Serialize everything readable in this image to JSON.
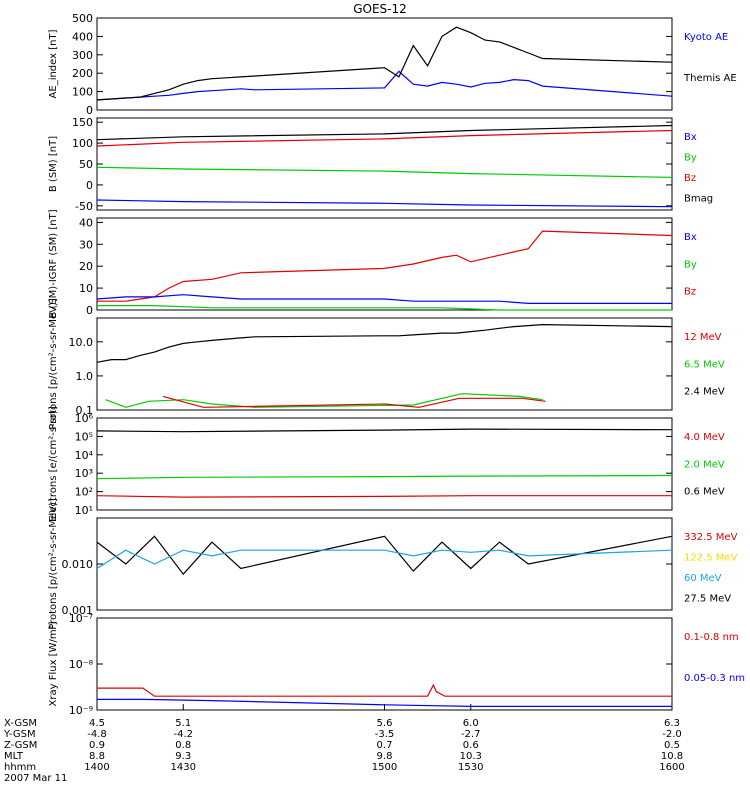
{
  "title": "GOES-12",
  "colors": {
    "black": "#000000",
    "blue": "#0000ff",
    "red": "#e00000",
    "green": "#00cc00",
    "cyan": "#1aa5e0",
    "yellow": "#ffd700"
  },
  "chart_data": [
    {
      "id": "ae",
      "type": "line",
      "ylabel": "AE_index [nT]",
      "ylim": [
        0,
        500
      ],
      "yticks": [
        "0",
        "100",
        "200",
        "300",
        "400",
        "500"
      ],
      "legend": [
        {
          "label": "Kyoto AE",
          "color": "blue"
        },
        {
          "label": "Themis AE",
          "color": "black"
        }
      ],
      "series": [
        {
          "name": "Kyoto AE",
          "color": "blue",
          "t": [
            1400,
            1405,
            1410,
            1415,
            1420,
            1425,
            1430,
            1435,
            1440,
            1445,
            1450,
            1455,
            1500,
            1505,
            1510,
            1515,
            1520,
            1525,
            1530,
            1535,
            1540,
            1545,
            1550,
            1555,
            1600
          ],
          "values": [
            55,
            60,
            65,
            70,
            75,
            80,
            90,
            100,
            105,
            110,
            115,
            110,
            120,
            210,
            140,
            130,
            150,
            140,
            125,
            145,
            150,
            165,
            160,
            130,
            75
          ]
        },
        {
          "name": "Themis AE",
          "color": "black",
          "t": [
            1400,
            1405,
            1410,
            1415,
            1420,
            1425,
            1430,
            1435,
            1440,
            1445,
            1450,
            1455,
            1500,
            1505,
            1510,
            1515,
            1520,
            1525,
            1530,
            1535,
            1540,
            1545,
            1550,
            1555,
            1600
          ],
          "values": [
            55,
            60,
            65,
            70,
            90,
            110,
            140,
            160,
            170,
            175,
            180,
            185,
            230,
            180,
            350,
            240,
            400,
            450,
            420,
            380,
            370,
            340,
            310,
            280,
            260
          ]
        }
      ]
    },
    {
      "id": "bsm",
      "type": "line",
      "ylabel": "B (SM) [nT]",
      "ylim": [
        -60,
        160
      ],
      "yticks": [
        "-50",
        "0",
        "50",
        "100",
        "150"
      ],
      "legend": [
        {
          "label": "Bx",
          "color": "blue"
        },
        {
          "label": "By",
          "color": "green"
        },
        {
          "label": "Bz",
          "color": "red"
        },
        {
          "label": "Bmag",
          "color": "black"
        }
      ],
      "series": [
        {
          "name": "Bmag",
          "color": "black",
          "t": [
            1400,
            1430,
            1500,
            1530,
            1600
          ],
          "values": [
            108,
            115,
            122,
            130,
            142
          ]
        },
        {
          "name": "Bz",
          "color": "red",
          "t": [
            1400,
            1430,
            1500,
            1530,
            1600
          ],
          "values": [
            93,
            102,
            110,
            118,
            130
          ]
        },
        {
          "name": "By",
          "color": "green",
          "t": [
            1400,
            1430,
            1500,
            1530,
            1600
          ],
          "values": [
            42,
            38,
            33,
            27,
            18
          ]
        },
        {
          "name": "Bx",
          "color": "blue",
          "t": [
            1400,
            1430,
            1500,
            1530,
            1600
          ],
          "values": [
            -36,
            -40,
            -44,
            -48,
            -52
          ]
        }
      ]
    },
    {
      "id": "bigrf",
      "type": "line",
      "ylabel": "B (SM)-IGRF (SM) [nT]",
      "ylim": [
        0,
        42
      ],
      "yticks": [
        "0",
        "10",
        "20",
        "30",
        "40"
      ],
      "legend": [
        {
          "label": "Bx",
          "color": "blue"
        },
        {
          "label": "By",
          "color": "green"
        },
        {
          "label": "Bz",
          "color": "red"
        }
      ],
      "series": [
        {
          "name": "Bz",
          "color": "red",
          "t": [
            1400,
            1410,
            1420,
            1425,
            1430,
            1440,
            1450,
            1500,
            1510,
            1520,
            1525,
            1530,
            1540,
            1550,
            1555,
            1600
          ],
          "values": [
            4,
            4,
            6,
            10,
            13,
            14,
            17,
            19,
            21,
            24,
            25,
            22,
            25,
            28,
            36,
            34
          ]
        },
        {
          "name": "Bx",
          "color": "blue",
          "t": [
            1400,
            1410,
            1420,
            1430,
            1440,
            1450,
            1500,
            1510,
            1520,
            1530,
            1540,
            1550,
            1600
          ],
          "values": [
            5,
            6,
            6,
            7,
            6,
            5,
            5,
            4,
            4,
            4,
            4,
            3,
            3
          ]
        },
        {
          "name": "By",
          "color": "green",
          "t": [
            1400,
            1420,
            1440,
            1500,
            1520,
            1540,
            1600
          ],
          "values": [
            2,
            2,
            1,
            1,
            1,
            0,
            0
          ]
        }
      ]
    },
    {
      "id": "protons1",
      "type": "line",
      "scale": "log",
      "ylabel": "Protons [p/(cm²-s-sr-MeV)]",
      "ylim": [
        0.1,
        50
      ],
      "yticks": [
        "0.1",
        "1.0",
        "10.0"
      ],
      "legend": [
        {
          "label": "12 MeV",
          "color": "red"
        },
        {
          "label": "6.5 MeV",
          "color": "green"
        },
        {
          "label": "2.4 MeV",
          "color": "black"
        }
      ],
      "series": [
        {
          "name": "2.4 MeV",
          "color": "black",
          "t": [
            1400,
            1405,
            1410,
            1415,
            1420,
            1425,
            1430,
            1435,
            1440,
            1445,
            1450,
            1455,
            1500,
            1505,
            1510,
            1515,
            1520,
            1525,
            1530,
            1535,
            1540,
            1545,
            1550,
            1555,
            1600
          ],
          "values": [
            2.5,
            3,
            3,
            4,
            5,
            7,
            9,
            10,
            11,
            12,
            13,
            14,
            15,
            15,
            16,
            17,
            18,
            18,
            20,
            22,
            25,
            28,
            30,
            32,
            28
          ]
        },
        {
          "name": "6.5 MeV",
          "color": "green",
          "t": [
            1403,
            1410,
            1418,
            1430,
            1440,
            1455,
            1510,
            1527,
            1547,
            1555
          ],
          "values": [
            0.2,
            0.12,
            0.18,
            0.2,
            0.15,
            0.12,
            0.14,
            0.3,
            0.25,
            0.2
          ]
        },
        {
          "name": "12 MeV",
          "color": "red",
          "t": [
            1423,
            1437,
            1500,
            1512,
            1526,
            1548,
            1556
          ],
          "values": [
            0.25,
            0.12,
            0.15,
            0.12,
            0.22,
            0.22,
            0.18
          ]
        }
      ]
    },
    {
      "id": "electrons",
      "type": "line",
      "scale": "log",
      "ylabel": "Electrons [e/(cm²-s-sr)]",
      "ylim": [
        10,
        1000000
      ],
      "yticks": [
        "10¹",
        "10²",
        "10³",
        "10⁴",
        "10⁵",
        "10⁶"
      ],
      "legend": [
        {
          "label": "4.0 MeV",
          "color": "red"
        },
        {
          "label": "2.0 MeV",
          "color": "green"
        },
        {
          "label": "0.6 MeV",
          "color": "black"
        }
      ],
      "series": [
        {
          "name": "0.6 MeV",
          "color": "black",
          "t": [
            1400,
            1430,
            1500,
            1530,
            1600
          ],
          "values": [
            200000,
            180000,
            220000,
            250000,
            230000
          ]
        },
        {
          "name": "2.0 MeV",
          "color": "green",
          "t": [
            1400,
            1430,
            1500,
            1530,
            1600
          ],
          "values": [
            500,
            600,
            650,
            700,
            750
          ]
        },
        {
          "name": "4.0 MeV",
          "color": "red",
          "t": [
            1400,
            1430,
            1500,
            1530,
            1600
          ],
          "values": [
            60,
            50,
            55,
            60,
            60
          ]
        }
      ]
    },
    {
      "id": "protons2",
      "type": "line",
      "scale": "log",
      "ylabel": "Protons [p/(cm²-s-sr-MeV)]",
      "ylim": [
        0.001,
        0.1
      ],
      "yticks": [
        "0.001",
        "0.010"
      ],
      "legend": [
        {
          "label": "332.5 MeV",
          "color": "red"
        },
        {
          "label": "122.5 MeV",
          "color": "yellow"
        },
        {
          "label": "60 MeV",
          "color": "cyan"
        },
        {
          "label": "27.5 MeV",
          "color": "black"
        }
      ],
      "series": [
        {
          "name": "27.5 MeV",
          "color": "black",
          "t": [
            1400,
            1410,
            1420,
            1430,
            1440,
            1450,
            1500,
            1510,
            1520,
            1530,
            1540,
            1550,
            1600
          ],
          "values": [
            0.03,
            0.01,
            0.04,
            0.006,
            0.03,
            0.008,
            0.04,
            0.007,
            0.03,
            0.008,
            0.03,
            0.01,
            0.04
          ]
        },
        {
          "name": "60 MeV",
          "color": "cyan",
          "t": [
            1400,
            1410,
            1420,
            1430,
            1440,
            1450,
            1500,
            1510,
            1520,
            1530,
            1540,
            1550,
            1600
          ],
          "values": [
            0.008,
            0.02,
            0.01,
            0.02,
            0.015,
            0.02,
            0.02,
            0.015,
            0.02,
            0.018,
            0.02,
            0.015,
            0.02
          ]
        }
      ]
    },
    {
      "id": "xray",
      "type": "line",
      "scale": "log",
      "ylabel": "Xray Flux [W/m²]",
      "ylim": [
        1e-09,
        1e-07
      ],
      "yticks": [
        "10⁻⁹",
        "10⁻⁸",
        "10⁻⁷"
      ],
      "legend": [
        {
          "label": "0.1-0.8 nm",
          "color": "red"
        },
        {
          "label": "0.05-0.3 nm",
          "color": "blue"
        }
      ],
      "series": [
        {
          "name": "0.1-0.8 nm",
          "color": "red",
          "t": [
            1400,
            1416,
            1420,
            1500,
            1515,
            1517,
            1518,
            1521,
            1600
          ],
          "values": [
            3e-09,
            3e-09,
            2e-09,
            2e-09,
            2e-09,
            3.5e-09,
            2.5e-09,
            2e-09,
            2e-09
          ]
        },
        {
          "name": "0.05-0.3 nm",
          "color": "blue",
          "t": [
            1400,
            1416,
            1440,
            1500,
            1530,
            1545,
            1600
          ],
          "values": [
            1.7e-09,
            1.7e-09,
            1.6e-09,
            1.3e-09,
            1.2e-09,
            1.2e-09,
            1.2e-09
          ]
        }
      ]
    }
  ],
  "xaxis": {
    "row_labels": [
      "X-GSM",
      "Y-GSM",
      "Z-GSM",
      "MLT",
      "hhmm"
    ],
    "ticks": [
      {
        "t": 1400,
        "values": [
          "4.5",
          "-4.8",
          "0.9",
          "8.8",
          "1400"
        ]
      },
      {
        "t": 1430,
        "values": [
          "5.1",
          "-4.2",
          "0.8",
          "9.3",
          "1430"
        ]
      },
      {
        "t": 1500,
        "values": [
          "5.6",
          "-3.5",
          "0.7",
          "9.8",
          "1500"
        ]
      },
      {
        "t": 1530,
        "values": [
          "6.0",
          "-2.7",
          "0.6",
          "10.3",
          "1530"
        ]
      },
      {
        "t": 1600,
        "values": [
          "6.3",
          "-2.0",
          "0.5",
          "10.8",
          "1600"
        ]
      }
    ],
    "date": "2007 Mar 11"
  }
}
